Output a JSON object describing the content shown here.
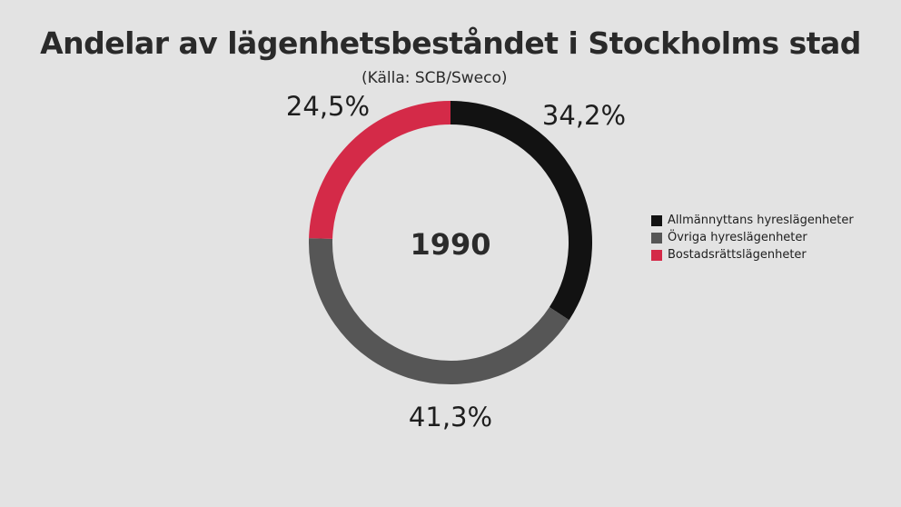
{
  "title": "Andelar av lägenhetsbeståndet i Stockholms stad",
  "subtitle": "(Källa: SCB/Sweco)",
  "chart_data": {
    "type": "pie",
    "variant": "donut",
    "center_label": "1990",
    "categories": [
      "Allmännyttans hyreslägenheter",
      "Övriga hyreslägenheter",
      "Bostadsrättslägenheter"
    ],
    "values": [
      34.2,
      41.3,
      24.5
    ],
    "value_labels": [
      "34,2%",
      "41,3%",
      "24,5%"
    ],
    "colors": [
      "#121212",
      "#565656",
      "#d42a48"
    ],
    "start_angle": "12 o'clock",
    "direction": "clockwise",
    "legend_position": "right"
  }
}
